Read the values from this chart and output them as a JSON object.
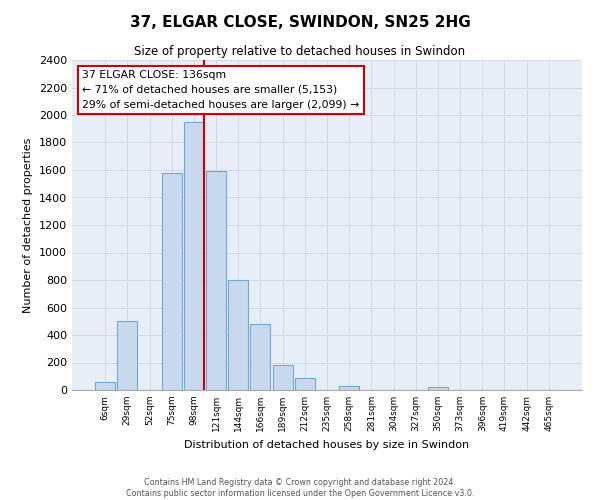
{
  "title": "37, ELGAR CLOSE, SWINDON, SN25 2HG",
  "subtitle": "Size of property relative to detached houses in Swindon",
  "xlabel": "Distribution of detached houses by size in Swindon",
  "ylabel": "Number of detached properties",
  "bar_labels": [
    "6sqm",
    "29sqm",
    "52sqm",
    "75sqm",
    "98sqm",
    "121sqm",
    "144sqm",
    "166sqm",
    "189sqm",
    "212sqm",
    "235sqm",
    "258sqm",
    "281sqm",
    "304sqm",
    "327sqm",
    "350sqm",
    "373sqm",
    "396sqm",
    "419sqm",
    "442sqm",
    "465sqm"
  ],
  "bar_values": [
    55,
    500,
    0,
    1580,
    1950,
    1590,
    800,
    480,
    185,
    90,
    0,
    30,
    0,
    0,
    0,
    20,
    0,
    0,
    0,
    0,
    0
  ],
  "bar_color": "#c8d9ee",
  "bar_edge_color": "#6aaad4",
  "red_line_after_index": 4,
  "ylim": [
    0,
    2400
  ],
  "yticks": [
    0,
    200,
    400,
    600,
    800,
    1000,
    1200,
    1400,
    1600,
    1800,
    2000,
    2200,
    2400
  ],
  "annotation_title": "37 ELGAR CLOSE: 136sqm",
  "annotation_line1": "← 71% of detached houses are smaller (5,153)",
  "annotation_line2": "29% of semi-detached houses are larger (2,099) →",
  "annotation_box_color": "#ffffff",
  "annotation_box_edge_color": "#cc0000",
  "grid_color": "#d0d8e8",
  "plot_bg_color": "#e8eef8",
  "background_color": "#ffffff",
  "footer_line1": "Contains HM Land Registry data © Crown copyright and database right 2024.",
  "footer_line2": "Contains public sector information licensed under the Open Government Licence v3.0."
}
